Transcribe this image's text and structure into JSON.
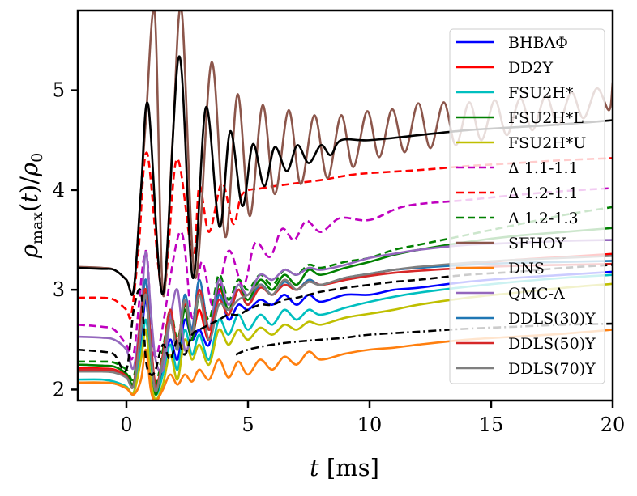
{
  "chart_data": {
    "type": "line",
    "title": "",
    "xlabel": "t [ms]",
    "ylabel": "ρmax(t)/ρ0",
    "xlim": [
      -2,
      20
    ],
    "ylim": [
      1.89,
      5.8
    ],
    "xticks": [
      0,
      5,
      10,
      15,
      20
    ],
    "yticks": [
      2,
      3,
      4,
      5
    ],
    "grid": false,
    "legend_placement": "upper-right",
    "series": [
      {
        "name": "BHBΛΦ",
        "color": "#0000ff",
        "dash": "solid",
        "x": [
          -2,
          -1,
          -0.5,
          0,
          0.3,
          0.6,
          0.8,
          1.0,
          1.2,
          1.5,
          1.8,
          2.1,
          2.4,
          2.7,
          3.0,
          3.4,
          3.8,
          4.2,
          4.6,
          5.0,
          5.5,
          6.0,
          6.5,
          7.0,
          7.5,
          8.0,
          9,
          10,
          11,
          12,
          14,
          16,
          18,
          20
        ],
        "y": [
          2.2,
          2.19,
          2.18,
          2.12,
          2.05,
          2.5,
          2.9,
          2.4,
          2.0,
          2.2,
          2.5,
          2.3,
          2.7,
          2.5,
          2.6,
          2.45,
          2.95,
          2.7,
          2.85,
          2.8,
          2.9,
          2.85,
          2.95,
          2.85,
          2.95,
          2.88,
          2.95,
          2.95,
          3.0,
          3.02,
          3.08,
          3.12,
          3.15,
          3.18
        ]
      },
      {
        "name": "DD2Y",
        "color": "#ff0000",
        "dash": "solid",
        "x": [
          -2,
          -1,
          -0.5,
          0,
          0.3,
          0.6,
          0.8,
          1.0,
          1.2,
          1.5,
          1.8,
          2.1,
          2.4,
          2.7,
          3.0,
          3.4,
          3.8,
          4.2,
          4.6,
          5.0,
          5.5,
          6.0,
          6.5,
          7.0,
          7.5,
          8.0,
          9,
          10,
          11,
          12,
          14,
          16,
          18,
          20
        ],
        "y": [
          2.22,
          2.21,
          2.2,
          2.14,
          2.05,
          2.6,
          3.0,
          2.5,
          2.05,
          2.3,
          2.7,
          2.4,
          2.85,
          2.55,
          2.8,
          2.5,
          3.0,
          2.8,
          3.0,
          2.85,
          3.05,
          2.95,
          3.1,
          3.0,
          3.1,
          3.05,
          3.1,
          3.15,
          3.2,
          3.22,
          3.26,
          3.3,
          3.33,
          3.36
        ]
      },
      {
        "name": "FSU2H*",
        "color": "#00bfbf",
        "dash": "solid",
        "x": [
          -2,
          -1,
          -0.5,
          0,
          0.3,
          0.6,
          0.8,
          1.0,
          1.2,
          1.5,
          1.8,
          2.1,
          2.4,
          2.7,
          3.0,
          3.4,
          3.8,
          4.2,
          4.6,
          5.0,
          5.5,
          6.0,
          6.5,
          7.0,
          7.5,
          8.0,
          9,
          10,
          11,
          12,
          14,
          16,
          18,
          20
        ],
        "y": [
          2.1,
          2.1,
          2.08,
          2.03,
          1.97,
          2.4,
          2.7,
          2.3,
          1.95,
          2.15,
          2.45,
          2.2,
          2.6,
          2.35,
          2.55,
          2.3,
          2.7,
          2.55,
          2.75,
          2.6,
          2.75,
          2.65,
          2.8,
          2.7,
          2.8,
          2.75,
          2.82,
          2.88,
          2.93,
          2.97,
          3.03,
          3.08,
          3.12,
          3.15
        ]
      },
      {
        "name": "FSU2H*L",
        "color": "#008000",
        "dash": "solid",
        "x": [
          -2,
          -1,
          -0.5,
          0,
          0.3,
          0.6,
          0.8,
          1.0,
          1.2,
          1.5,
          1.8,
          2.1,
          2.4,
          2.7,
          3.0,
          3.4,
          3.8,
          4.2,
          4.6,
          5.0,
          5.5,
          6.0,
          6.5,
          7.0,
          7.5,
          8.0,
          9,
          10,
          11,
          12,
          14,
          16,
          18,
          20
        ],
        "y": [
          2.25,
          2.24,
          2.23,
          2.16,
          2.07,
          2.6,
          2.95,
          2.4,
          1.95,
          2.3,
          2.75,
          2.4,
          2.8,
          2.5,
          2.95,
          2.6,
          3.05,
          2.8,
          3.05,
          2.9,
          3.1,
          3.0,
          3.15,
          3.05,
          3.2,
          3.15,
          3.22,
          3.28,
          3.35,
          3.4,
          3.48,
          3.54,
          3.58,
          3.62
        ]
      },
      {
        "name": "FSU2H*U",
        "color": "#bfbf00",
        "dash": "solid",
        "x": [
          -2,
          -1,
          -0.5,
          0,
          0.3,
          0.6,
          0.8,
          1.0,
          1.2,
          1.5,
          1.8,
          2.1,
          2.4,
          2.7,
          3.0,
          3.4,
          3.8,
          4.2,
          4.6,
          5.0,
          5.5,
          6.0,
          6.5,
          7.0,
          7.5,
          8.0,
          9,
          10,
          11,
          12,
          14,
          16,
          18,
          20
        ],
        "y": [
          2.07,
          2.07,
          2.06,
          2.02,
          1.97,
          2.3,
          2.6,
          2.1,
          1.9,
          2.05,
          2.35,
          2.1,
          2.5,
          2.3,
          2.45,
          2.25,
          2.6,
          2.45,
          2.6,
          2.5,
          2.62,
          2.55,
          2.65,
          2.6,
          2.68,
          2.65,
          2.72,
          2.76,
          2.8,
          2.85,
          2.92,
          2.97,
          3.02,
          3.06
        ]
      },
      {
        "name": "Δ 1.1-1.1",
        "color": "#bf00bf",
        "dash": "dashed",
        "x": [
          -2,
          -1,
          -0.5,
          0,
          0.3,
          0.8,
          1.2,
          2.2,
          2.7,
          3.1,
          3.6,
          4.2,
          4.8,
          5.3,
          5.9,
          6.4,
          6.9,
          7.4,
          8.0,
          8.8,
          10,
          11.5,
          14,
          16,
          18,
          20
        ],
        "y": [
          2.65,
          2.63,
          2.6,
          2.45,
          2.36,
          3.39,
          2.33,
          3.58,
          2.72,
          3.28,
          2.82,
          3.39,
          3.04,
          3.47,
          3.33,
          3.61,
          3.5,
          3.69,
          3.58,
          3.72,
          3.7,
          3.84,
          3.9,
          3.95,
          3.99,
          4.02
        ]
      },
      {
        "name": "Δ 1.2-1.1",
        "color": "#ff0000",
        "dash": "dashed",
        "x": [
          -2,
          -1,
          -0.5,
          0,
          0.2,
          0.5,
          0.85,
          1.5,
          2.07,
          2.73,
          3.0,
          3.4,
          3.93,
          4.4,
          4.77,
          5.6,
          7.03,
          8,
          9.17,
          10,
          12,
          14,
          16,
          18,
          20
        ],
        "y": [
          2.92,
          2.92,
          2.9,
          2.8,
          2.75,
          3.4,
          4.37,
          2.96,
          4.31,
          3.33,
          4.04,
          3.58,
          4.07,
          3.66,
          3.96,
          4.02,
          4.07,
          4.1,
          4.15,
          4.17,
          4.2,
          4.24,
          4.27,
          4.3,
          4.32
        ]
      },
      {
        "name": "Δ 1.2-1.3",
        "color": "#008000",
        "dash": "dashed",
        "x": [
          -2,
          -1,
          -0.5,
          0,
          0.3,
          0.6,
          0.8,
          1.0,
          1.2,
          1.5,
          1.8,
          2.1,
          2.4,
          2.7,
          3.0,
          3.4,
          3.8,
          4.2,
          4.6,
          5.0,
          5.5,
          6.0,
          6.5,
          7.0,
          7.5,
          8.0,
          9,
          10,
          11,
          12,
          14,
          16,
          18,
          20
        ],
        "y": [
          2.28,
          2.28,
          2.27,
          2.2,
          2.12,
          2.7,
          3.0,
          2.45,
          2.05,
          2.4,
          2.8,
          2.5,
          2.85,
          2.6,
          3.0,
          2.7,
          3.15,
          2.9,
          3.1,
          3.0,
          3.15,
          3.05,
          3.2,
          3.15,
          3.25,
          3.22,
          3.28,
          3.32,
          3.4,
          3.45,
          3.55,
          3.65,
          3.75,
          3.83
        ]
      },
      {
        "name": "SFHOY",
        "color": "#8c564b",
        "dash": "solid",
        "x": [
          -2,
          -1,
          -0.5,
          0,
          0.3,
          0.6,
          0.8,
          1.17,
          1.5,
          1.9,
          2.27,
          2.83,
          3.5,
          4.07,
          4.57,
          5.07,
          5.6,
          6.1,
          6.67,
          7.17,
          7.73,
          8.27,
          8.83,
          9.33,
          9.9,
          10.4,
          10.93,
          11.45,
          12,
          12.5,
          13.05,
          13.55,
          14.1,
          14.6,
          15.15,
          15.65,
          16.2,
          16.7,
          17.25,
          17.75,
          18.3,
          18.8,
          19.35,
          19.85,
          20
        ],
        "y": [
          3.23,
          3.22,
          3.2,
          3.1,
          3.0,
          4.0,
          4.7,
          5.77,
          2.96,
          4.5,
          5.8,
          3.12,
          5.28,
          3.53,
          4.96,
          3.74,
          4.85,
          3.96,
          4.8,
          4.06,
          4.75,
          4.12,
          4.75,
          4.23,
          4.79,
          4.33,
          4.81,
          4.38,
          4.87,
          4.42,
          4.88,
          4.45,
          4.88,
          4.5,
          4.9,
          4.55,
          4.92,
          4.6,
          4.95,
          4.65,
          4.98,
          4.72,
          5.02,
          4.8,
          5.08
        ]
      },
      {
        "name": "DNS",
        "color": "#ff7f0e",
        "dash": "solid",
        "x": [
          -2,
          -1,
          -0.5,
          0,
          0.3,
          0.6,
          0.8,
          1.0,
          1.2,
          1.5,
          1.8,
          2.1,
          2.4,
          2.7,
          3.0,
          3.4,
          3.8,
          4.2,
          4.6,
          5.0,
          5.5,
          6.0,
          6.5,
          7.0,
          7.5,
          8.0,
          9,
          10,
          11,
          12,
          14,
          16,
          18,
          20
        ],
        "y": [
          2.07,
          2.07,
          2.06,
          2.01,
          1.95,
          2.1,
          2.4,
          2.0,
          1.88,
          2.0,
          2.15,
          2.05,
          2.15,
          2.08,
          2.2,
          2.1,
          2.3,
          2.12,
          2.28,
          2.15,
          2.3,
          2.2,
          2.33,
          2.25,
          2.38,
          2.3,
          2.36,
          2.4,
          2.42,
          2.45,
          2.5,
          2.53,
          2.56,
          2.6
        ]
      },
      {
        "name": "QMC-A",
        "color": "#9467bd",
        "dash": "solid",
        "x": [
          -2,
          -1,
          -0.5,
          0,
          0.3,
          0.6,
          0.8,
          1.0,
          1.2,
          1.5,
          1.8,
          2.1,
          2.4,
          2.7,
          3.0,
          3.4,
          3.8,
          4.2,
          4.6,
          5.0,
          5.5,
          6.0,
          6.5,
          7.0,
          7.5,
          8.0,
          9,
          10,
          11,
          12,
          14,
          16,
          18,
          20
        ],
        "y": [
          2.53,
          2.52,
          2.5,
          2.4,
          2.22,
          2.8,
          3.38,
          2.8,
          2.3,
          2.2,
          2.7,
          3.0,
          2.4,
          2.6,
          3.0,
          2.6,
          3.1,
          2.85,
          3.05,
          2.95,
          3.15,
          3.1,
          3.2,
          3.15,
          3.22,
          3.2,
          3.25,
          3.32,
          3.36,
          3.4,
          3.45,
          3.47,
          3.49,
          3.5
        ]
      },
      {
        "name": "DDLS(30)Y",
        "color": "#1f77b4",
        "dash": "solid",
        "x": [
          -2,
          -1,
          -0.5,
          0,
          0.3,
          0.6,
          0.8,
          1.0,
          1.2,
          1.5,
          1.8,
          2.1,
          2.4,
          2.7,
          3.0,
          3.4,
          3.8,
          4.2,
          4.6,
          5.0,
          5.5,
          6.0,
          6.5,
          7.0,
          7.5,
          8.0,
          9,
          10,
          11,
          12,
          14,
          16,
          18,
          20
        ],
        "y": [
          2.2,
          2.2,
          2.19,
          2.13,
          2.05,
          2.7,
          3.1,
          2.5,
          2.0,
          2.3,
          2.8,
          2.4,
          2.95,
          2.6,
          3.1,
          2.6,
          2.95,
          2.75,
          3.0,
          2.85,
          3.05,
          2.95,
          3.08,
          3.0,
          3.1,
          3.05,
          3.12,
          3.16,
          3.2,
          3.22,
          3.25,
          3.27,
          3.28,
          3.29
        ]
      },
      {
        "name": "DDLS(50)Y",
        "color": "#d62728",
        "dash": "solid",
        "x": [
          -2,
          -1,
          -0.5,
          0,
          0.3,
          0.6,
          0.8,
          1.0,
          1.2,
          1.5,
          1.8,
          2.1,
          2.4,
          2.7,
          3.0,
          3.4,
          3.8,
          4.2,
          4.6,
          5.0,
          5.5,
          6.0,
          6.5,
          7.0,
          7.5,
          8.0,
          9,
          10,
          11,
          12,
          14,
          16,
          18,
          20
        ],
        "y": [
          2.2,
          2.2,
          2.19,
          2.13,
          2.05,
          2.75,
          3.0,
          2.5,
          2.0,
          2.35,
          2.8,
          2.45,
          2.9,
          2.55,
          3.0,
          2.6,
          2.9,
          2.75,
          3.0,
          2.85,
          3.02,
          2.95,
          3.05,
          3.0,
          3.08,
          3.05,
          3.1,
          3.14,
          3.17,
          3.19,
          3.22,
          3.24,
          3.25,
          3.26
        ]
      },
      {
        "name": "DDLS(70)Y",
        "color": "#7f7f7f",
        "dash": "solid",
        "x": [
          -2,
          -1,
          -0.5,
          0,
          0.3,
          0.6,
          0.8,
          1.0,
          1.2,
          1.5,
          1.8,
          2.1,
          2.4,
          2.7,
          3.0,
          3.4,
          3.8,
          4.2,
          4.6,
          5.0,
          5.5,
          6.0,
          6.5,
          7.0,
          7.5,
          8.0,
          9,
          10,
          11,
          12,
          14,
          16,
          18,
          20
        ],
        "y": [
          2.18,
          2.18,
          2.17,
          2.12,
          2.04,
          2.6,
          2.95,
          2.4,
          1.98,
          2.3,
          2.7,
          2.4,
          2.9,
          2.55,
          2.95,
          2.5,
          2.85,
          2.8,
          2.9,
          2.95,
          3.05,
          2.95,
          3.1,
          3.0,
          3.08,
          3.05,
          3.12,
          3.16,
          3.2,
          3.23,
          3.27,
          3.3,
          3.32,
          3.34
        ]
      },
      {
        "color": "#000000",
        "dash": "solid",
        "x": [
          -2,
          -1,
          -0.5,
          0,
          0.3,
          0.6,
          0.9,
          1.5,
          2.17,
          2.73,
          3.27,
          3.83,
          4.27,
          4.77,
          5.2,
          5.67,
          6.1,
          6.6,
          7.03,
          7.5,
          8.0,
          8.4,
          8.83,
          10,
          12,
          14,
          16,
          18,
          20
        ],
        "y": [
          3.22,
          3.21,
          3.2,
          3.1,
          3.0,
          4.0,
          4.85,
          2.96,
          5.34,
          3.12,
          4.83,
          3.63,
          4.59,
          3.84,
          4.46,
          4.04,
          4.43,
          4.19,
          4.45,
          4.27,
          4.45,
          4.35,
          4.5,
          4.5,
          4.55,
          4.6,
          4.63,
          4.66,
          4.7
        ]
      },
      {
        "color": "#000000",
        "dash": "dashed",
        "x": [
          -2,
          -1,
          -0.5,
          0,
          0.3,
          0.6,
          0.8,
          1.0,
          1.2,
          1.5,
          1.8,
          2.1,
          2.4,
          2.7,
          3.0,
          3.4,
          3.8,
          4.2,
          4.6,
          5.0,
          5.5,
          6.0,
          6.5,
          7.0,
          7.5,
          8.0,
          9,
          10,
          11,
          12,
          14,
          16,
          18,
          20
        ],
        "y": [
          2.4,
          2.38,
          2.35,
          2.2,
          2.8,
          2.98,
          2.3,
          2.15,
          2.2,
          2.45,
          2.3,
          2.5,
          2.35,
          2.55,
          2.6,
          2.65,
          2.7,
          2.75,
          2.75,
          2.8,
          2.85,
          2.85,
          2.9,
          2.92,
          2.95,
          2.98,
          3.02,
          3.05,
          3.08,
          3.1,
          3.15,
          3.18,
          3.22,
          3.25
        ]
      },
      {
        "color": "#000000",
        "dash": "dashdot",
        "x": [
          4.5,
          5,
          6,
          7,
          8,
          9,
          10,
          12,
          14,
          16,
          18,
          20
        ],
        "y": [
          2.35,
          2.4,
          2.45,
          2.48,
          2.5,
          2.52,
          2.55,
          2.58,
          2.61,
          2.63,
          2.65,
          2.66
        ]
      }
    ]
  }
}
